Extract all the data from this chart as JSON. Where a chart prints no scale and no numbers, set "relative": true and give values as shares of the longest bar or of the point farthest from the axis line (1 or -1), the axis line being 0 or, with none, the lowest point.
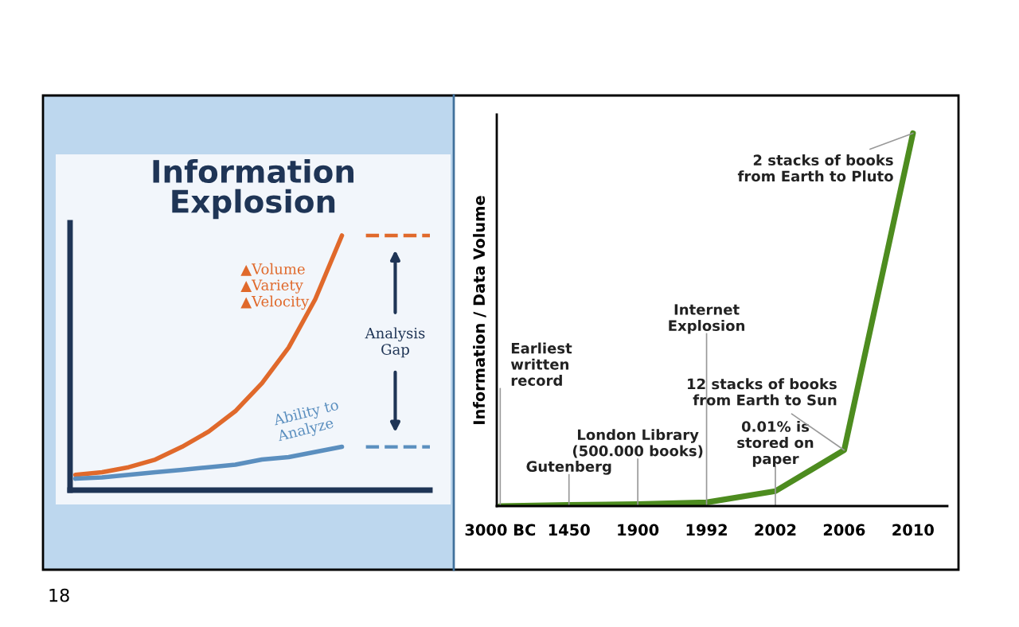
{
  "chart_data": [
    {
      "type": "line",
      "title": "Information\nExplosion",
      "relative": true,
      "tick_labels": false,
      "categories": [
        null,
        null,
        null,
        null,
        null,
        null,
        null,
        null,
        null,
        null,
        null
      ],
      "series": [
        {
          "color": "#e0692b",
          "values": [
            0.06,
            0.07,
            0.09,
            0.12,
            0.17,
            0.23,
            0.31,
            0.42,
            0.56,
            0.75,
            1.0
          ]
        },
        {
          "color": "#5b8fbf",
          "values": [
            0.045,
            0.05,
            0.06,
            0.07,
            0.08,
            0.09,
            0.1,
            0.12,
            0.13,
            0.15,
            0.17
          ]
        }
      ],
      "annotations": [
        "▲Volume\n▲Variety\n▲Velocity",
        "Ability to\nAnalyze",
        "Analysis\nGap"
      ]
    },
    {
      "type": "line",
      "ylabel": "Information / Data Volume",
      "relative": true,
      "tick_labels": "x",
      "categories": [
        "3000 BC",
        "1450",
        "1900",
        "1992",
        "2002",
        "2006",
        "2010"
      ],
      "series": [
        {
          "color": "#4d8c1f",
          "values": [
            0,
            0.003,
            0.005,
            0.01,
            0.04,
            0.15,
            1.0
          ]
        }
      ],
      "annotations": [
        {
          "text": "Earliest\nwritten\nrecord",
          "x": "3000 BC",
          "y": 0
        },
        {
          "text": "Gutenberg",
          "x": "1450",
          "y": 0.003
        },
        {
          "text": "London Library\n(500.000 books)",
          "x": "1900",
          "y": 0.005
        },
        {
          "text": "Internet\nExplosion",
          "x": "1992",
          "y": 0.01
        },
        {
          "text": "0.01% is\nstored on\npaper",
          "x": "2002",
          "y": 0.04
        },
        {
          "text": "12 stacks of books\nfrom Earth to Sun",
          "x": "2006",
          "y": 0.15
        },
        {
          "text": "2 stacks of books\nfrom Earth to Pluto",
          "x": "2010",
          "y": 1.0
        },
        "18"
      ]
    }
  ]
}
